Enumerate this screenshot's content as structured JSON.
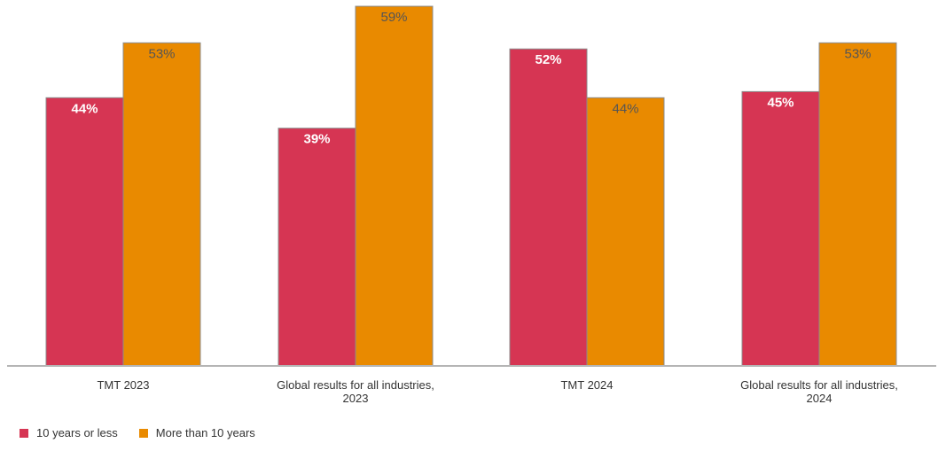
{
  "chart_data": {
    "type": "bar",
    "categories": [
      [
        "TMT 2023"
      ],
      [
        "Global results for all industries,",
        "2023"
      ],
      [
        "TMT 2024"
      ],
      [
        "Global results for all industries,",
        "2024"
      ]
    ],
    "series": [
      {
        "name": "10 years or less",
        "color": "#D63553",
        "values": [
          44,
          39,
          52,
          45
        ],
        "labels": [
          "44%",
          "39%",
          "52%",
          "45%"
        ]
      },
      {
        "name": "More than 10 years",
        "color": "#E98A00",
        "values": [
          53,
          59,
          44,
          53
        ],
        "labels": [
          "53%",
          "59%",
          "44%",
          "53%"
        ]
      }
    ],
    "ylim": [
      0,
      60
    ],
    "grid": false,
    "legend": "bottom-left"
  }
}
